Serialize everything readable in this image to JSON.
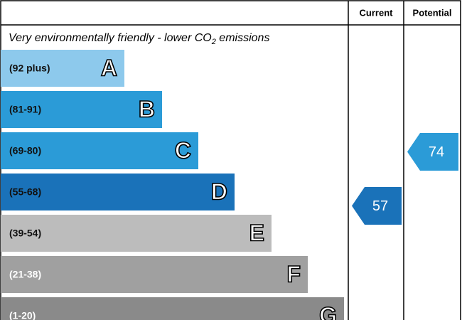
{
  "header": {
    "current": "Current",
    "potential": "Potential"
  },
  "title": {
    "text": "Very environmentally friendly - lower CO",
    "subscript": "2",
    "suffix": " emissions"
  },
  "bands": [
    {
      "range": "(92 plus)",
      "letter": "A",
      "color": "#8dc9ec"
    },
    {
      "range": "(81-91)",
      "letter": "B",
      "color": "#2b9bd7"
    },
    {
      "range": "(69-80)",
      "letter": "C",
      "color": "#2b9bd7"
    },
    {
      "range": "(55-68)",
      "letter": "D",
      "color": "#1a72b9"
    },
    {
      "range": "(39-54)",
      "letter": "E",
      "color": "#bcbcbc"
    },
    {
      "range": "(21-38)",
      "letter": "F",
      "color": "#a0a0a0"
    },
    {
      "range": "(1-20)",
      "letter": "G",
      "color": "#8a8a8a"
    }
  ],
  "current": {
    "value": 57,
    "color": "#1a72b9"
  },
  "potential": {
    "value": 74,
    "color": "#2b9bd7"
  }
}
